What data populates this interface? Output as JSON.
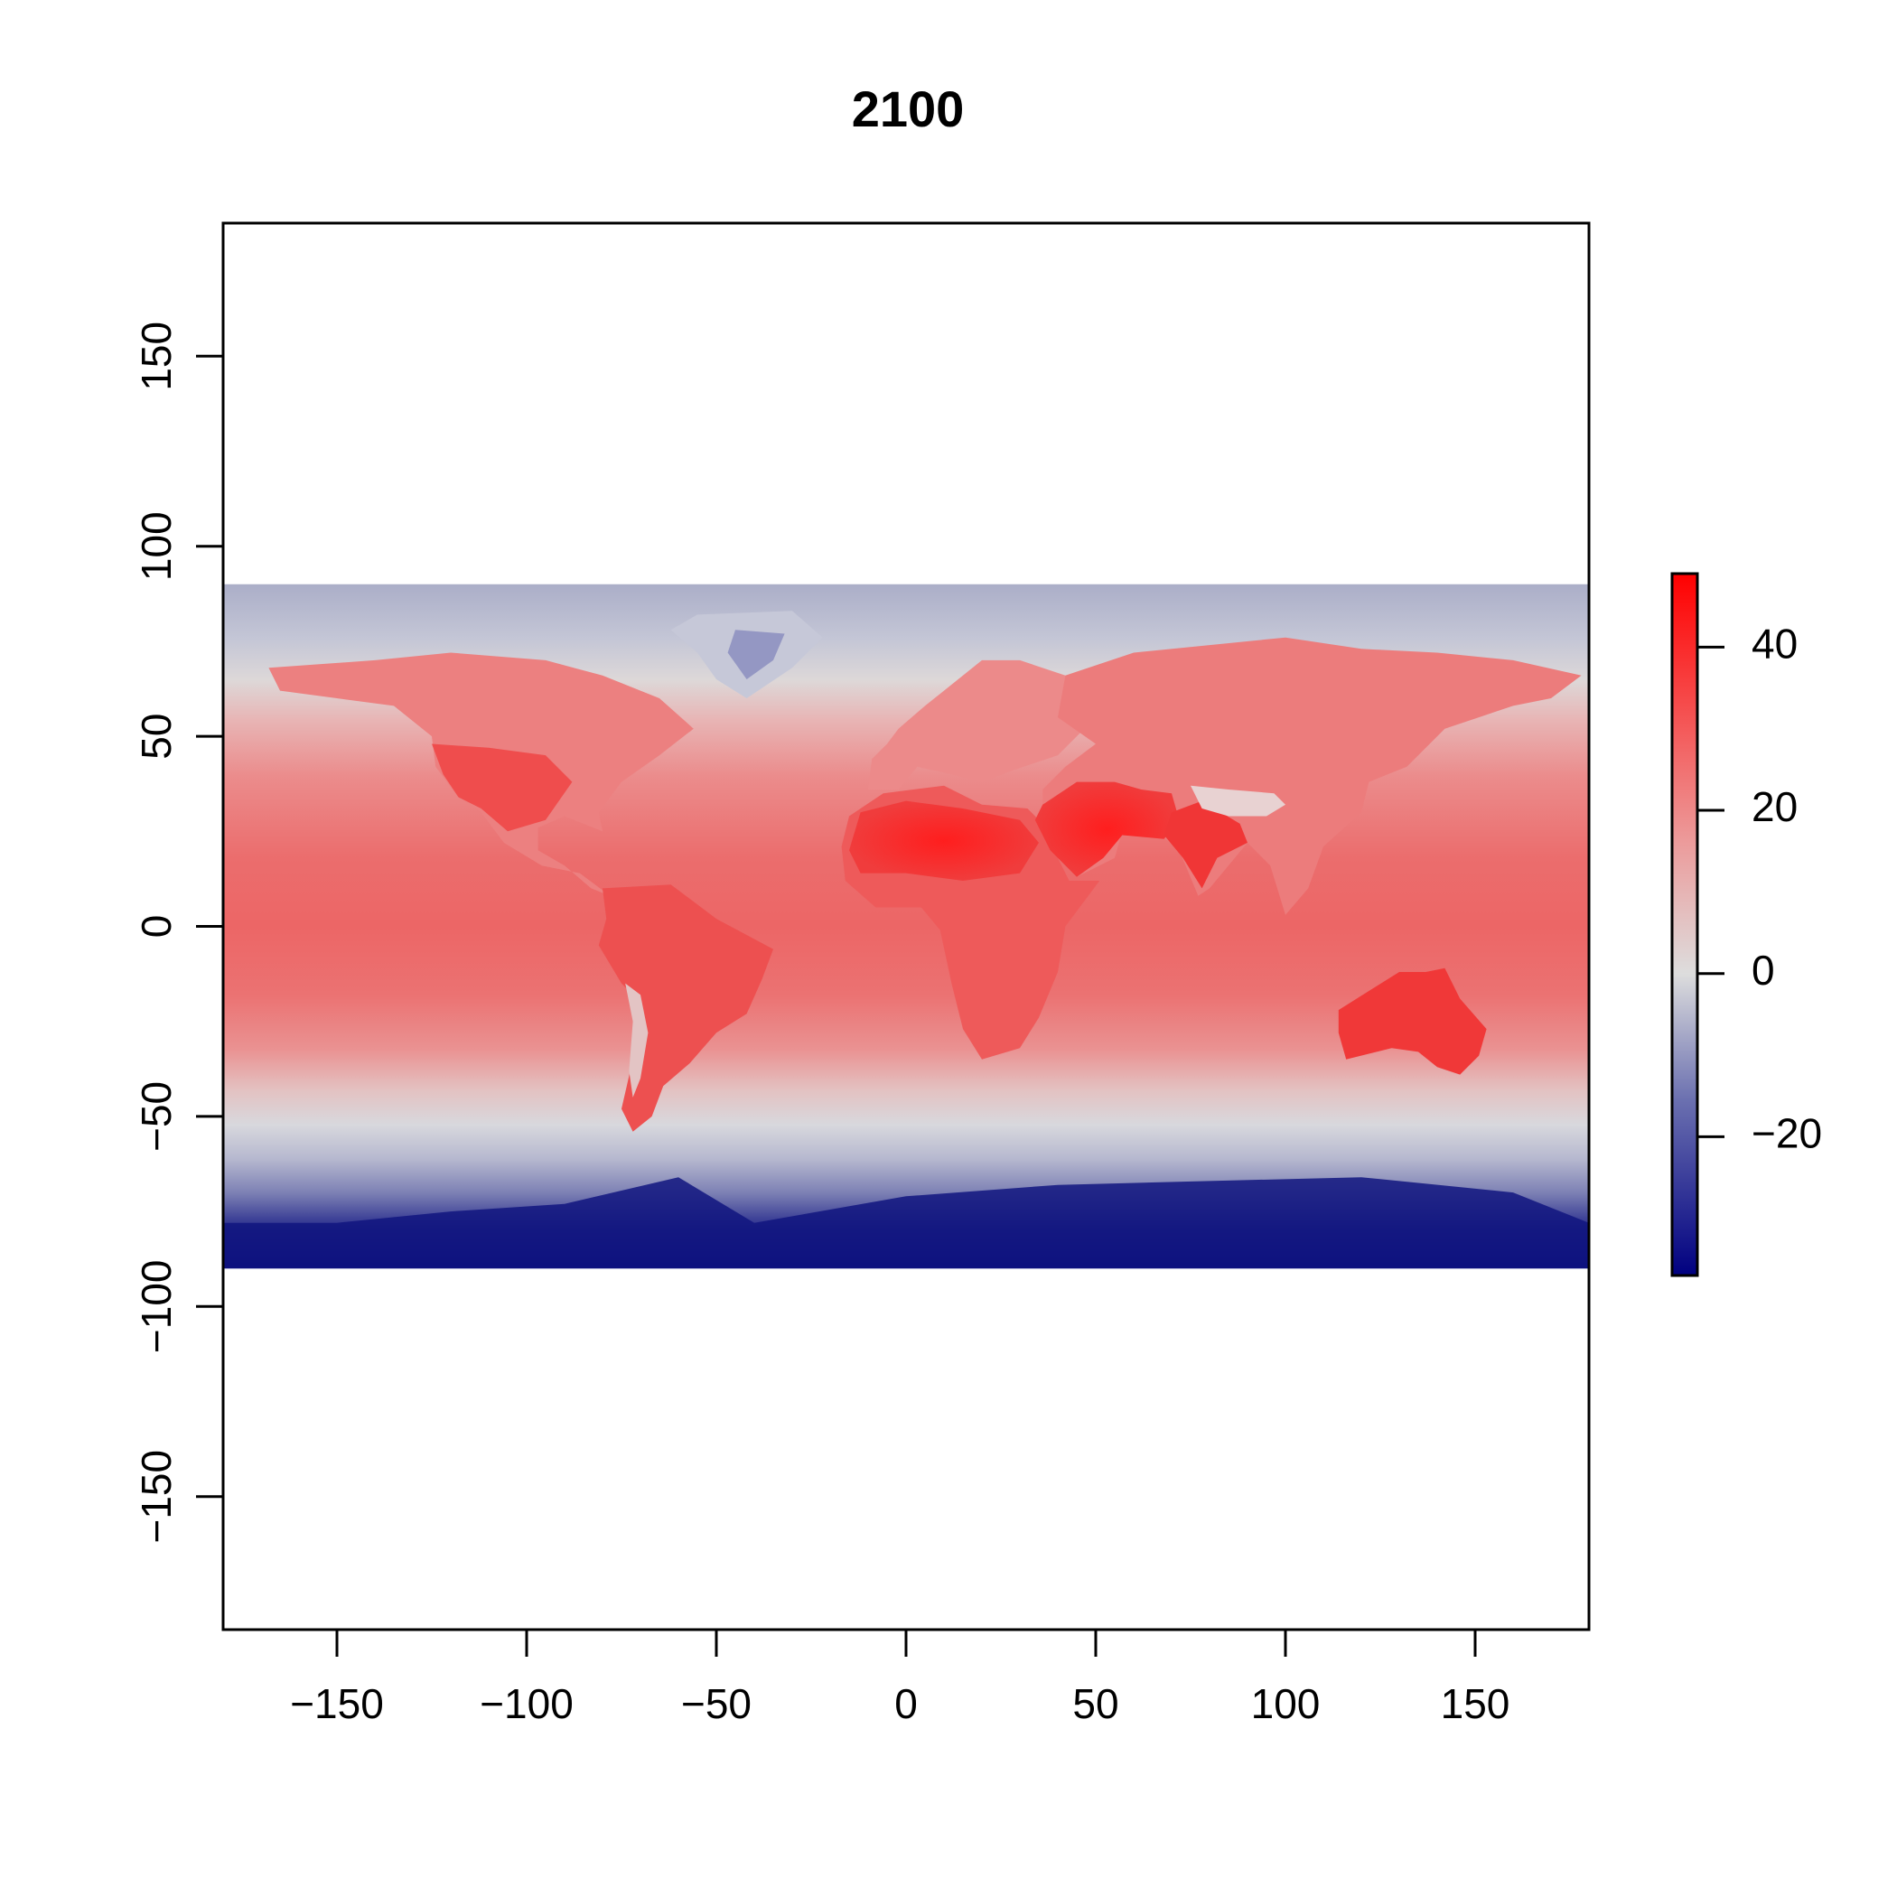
{
  "chart_data": {
    "type": "heatmap",
    "title": "2100",
    "xlabel": "",
    "ylabel": "",
    "xlim": [
      -180,
      180
    ],
    "ylim": [
      -185,
      185
    ],
    "x_ticks": [
      -150,
      -100,
      -50,
      0,
      50,
      100,
      150
    ],
    "y_ticks": [
      -150,
      -100,
      -50,
      0,
      50,
      100,
      150
    ],
    "raster_extent": {
      "lon": [
        -180,
        180
      ],
      "lat": [
        -90,
        90
      ]
    },
    "colorbar": {
      "range": [
        -37,
        49
      ],
      "ticks": [
        40,
        20,
        0,
        -20
      ],
      "colors": {
        "low": "#000080",
        "mid": "#dddddd",
        "high": "#ff0000"
      }
    },
    "features": [
      {
        "name": "Antarctica",
        "value": -35
      },
      {
        "name": "Arctic Ocean",
        "value": -10
      },
      {
        "name": "Greenland",
        "value": -15
      },
      {
        "name": "Tropical oceans",
        "value": 30
      },
      {
        "name": "Sahara and Arabia",
        "value": 45
      },
      {
        "name": "Australia",
        "value": 42
      },
      {
        "name": "Amazon",
        "value": 38
      },
      {
        "name": "Tibetan Plateau",
        "value": 5
      }
    ]
  }
}
